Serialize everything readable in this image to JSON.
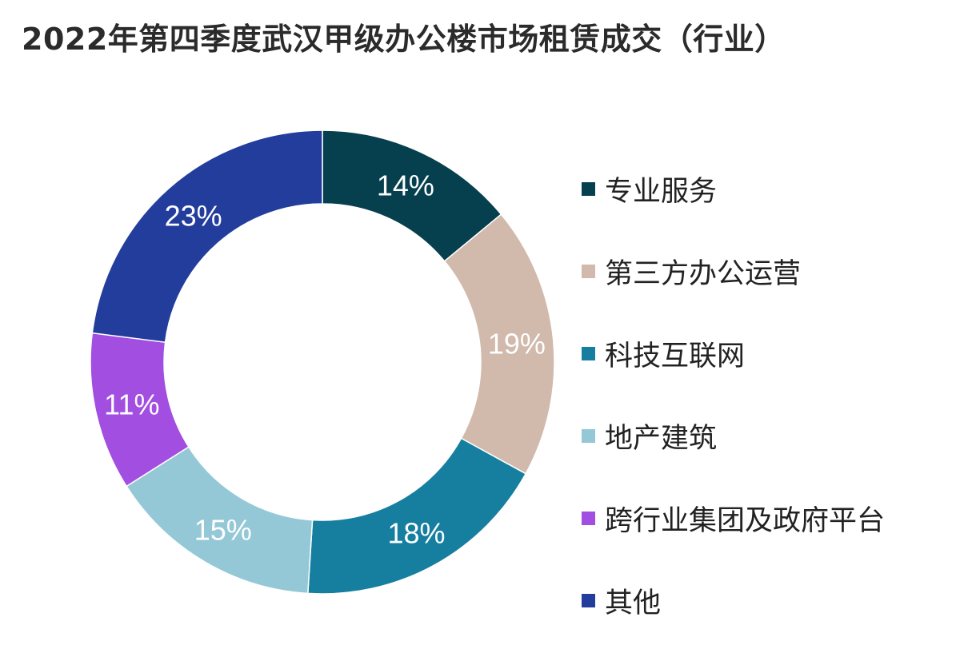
{
  "chart_data": {
    "type": "pie",
    "title": "2022年第四季度武汉甲级办公楼市场租赁成交（行业）",
    "categories": [
      "专业服务",
      "第三方办公运营",
      "科技互联网",
      "地产建筑",
      "跨行业集团及政府平台",
      "其他"
    ],
    "values": [
      14,
      19,
      18,
      15,
      11,
      23
    ],
    "value_labels": [
      "14%",
      "19%",
      "18%",
      "15%",
      "11%",
      "23%"
    ],
    "colors": [
      "#063f4d",
      "#d1b9ac",
      "#167fa0",
      "#94c8d6",
      "#a24ee0",
      "#233d9d"
    ],
    "label_colors": [
      "#ffffff",
      "#ffffff",
      "#ffffff",
      "#ffffff",
      "#ffffff",
      "#ffffff"
    ],
    "donut": true,
    "legend_position": "right"
  }
}
